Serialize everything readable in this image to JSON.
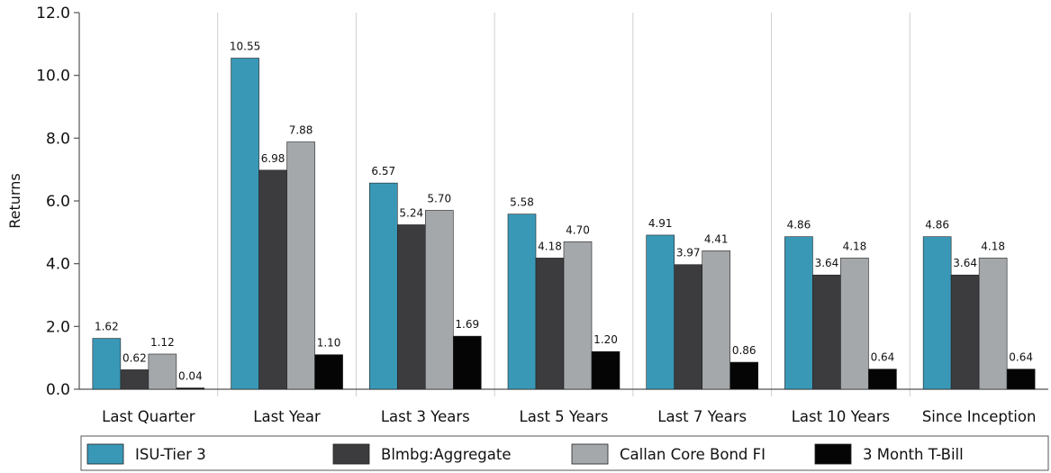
{
  "chart_data": {
    "type": "bar",
    "title": "",
    "xlabel": "",
    "ylabel": "Returns",
    "ylim": [
      0,
      12
    ],
    "yticks": [
      "0.0",
      "2.0",
      "4.0",
      "6.0",
      "8.0",
      "10.0",
      "12.0"
    ],
    "grid": "vertical separators between categories",
    "legend_position": "bottom",
    "categories": [
      "Last Quarter",
      "Last Year",
      "Last 3 Years",
      "Last 5 Years",
      "Last 7 Years",
      "Last 10 Years",
      "Since Inception"
    ],
    "series": [
      {
        "name": "ISU-Tier 3",
        "color": "#3a98b7",
        "values": [
          1.62,
          10.55,
          6.57,
          5.58,
          4.91,
          4.86,
          4.86
        ],
        "labels": [
          "1.62",
          "10.55",
          "6.57",
          "5.58",
          "4.91",
          "4.86",
          "4.86"
        ]
      },
      {
        "name": "Blmbg:Aggregate",
        "color": "#3c3c3e",
        "values": [
          0.62,
          6.98,
          5.24,
          4.18,
          3.97,
          3.64,
          3.64
        ],
        "labels": [
          "0.62",
          "6.98",
          "5.24",
          "4.18",
          "3.97",
          "3.64",
          "3.64"
        ]
      },
      {
        "name": "Callan Core Bond FI",
        "color": "#a4a8ab",
        "values": [
          1.12,
          7.88,
          5.7,
          4.7,
          4.41,
          4.18,
          4.18
        ],
        "labels": [
          "1.12",
          "7.88",
          "5.70",
          "4.70",
          "4.41",
          "4.18",
          "4.18"
        ]
      },
      {
        "name": "3 Month T-Bill",
        "color": "#050505",
        "values": [
          0.04,
          1.1,
          1.69,
          1.2,
          0.86,
          0.64,
          0.64
        ],
        "labels": [
          "0.04",
          "1.10",
          "1.69",
          "1.20",
          "0.86",
          "0.64",
          "0.64"
        ]
      }
    ]
  }
}
